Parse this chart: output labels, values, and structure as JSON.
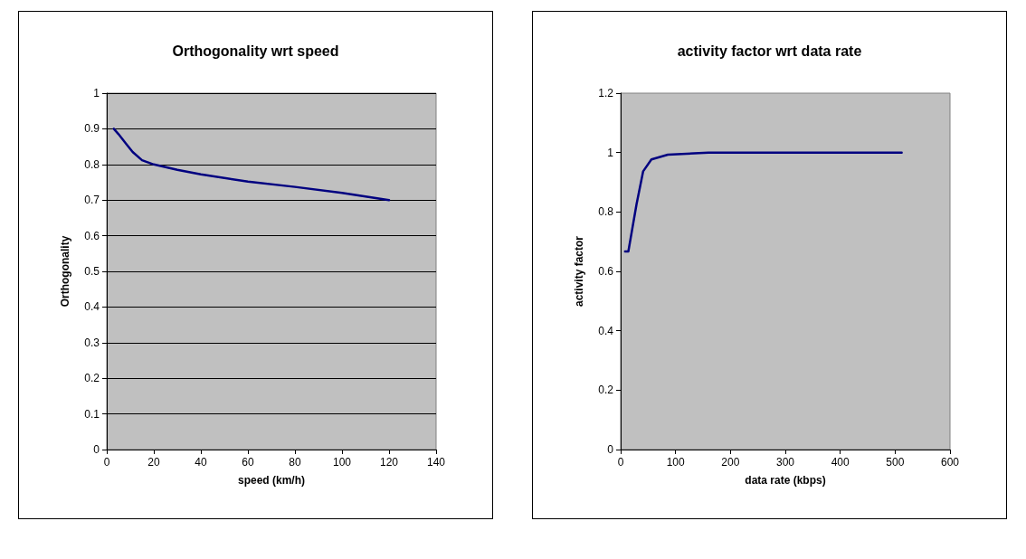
{
  "chart_data": [
    {
      "type": "line",
      "title": "Orthogonality wrt speed",
      "xlabel": "speed (km/h)",
      "ylabel": "Orthogonality",
      "x": [
        3,
        5,
        8,
        11,
        15,
        20,
        30,
        40,
        60,
        80,
        100,
        120
      ],
      "series": [
        {
          "color": "#000080",
          "values": [
            0.9,
            0.885,
            0.86,
            0.835,
            0.812,
            0.8,
            0.785,
            0.772,
            0.752,
            0.737,
            0.72,
            0.7
          ]
        }
      ],
      "xlim": [
        0,
        140
      ],
      "xticks": [
        0,
        20,
        40,
        60,
        80,
        100,
        120,
        140
      ],
      "ylim": [
        0,
        1
      ],
      "yticks": [
        0,
        0.1,
        0.2,
        0.3,
        0.4,
        0.5,
        0.6,
        0.7,
        0.8,
        0.9,
        1
      ],
      "grid": "y",
      "marker": "none",
      "line_style": "solid"
    },
    {
      "type": "line",
      "title": "activity factor wrt data rate",
      "xlabel": "data rate (kbps)",
      "ylabel": "activity factor",
      "x": [
        8,
        14,
        29,
        41,
        56,
        86,
        160,
        300,
        400,
        512
      ],
      "series": [
        {
          "color": "#000080",
          "values": [
            0.667,
            0.667,
            0.827,
            0.937,
            0.977,
            0.993,
            1.0,
            1.0,
            1.0,
            1.0
          ]
        }
      ],
      "xlim": [
        0,
        600
      ],
      "xticks": [
        0,
        100,
        200,
        300,
        400,
        500,
        600
      ],
      "ylim": [
        0,
        1.2
      ],
      "yticks": [
        0,
        0.2,
        0.4,
        0.6,
        0.8,
        1,
        1.2
      ],
      "grid": false,
      "marker": "none",
      "line_style": "solid"
    }
  ]
}
